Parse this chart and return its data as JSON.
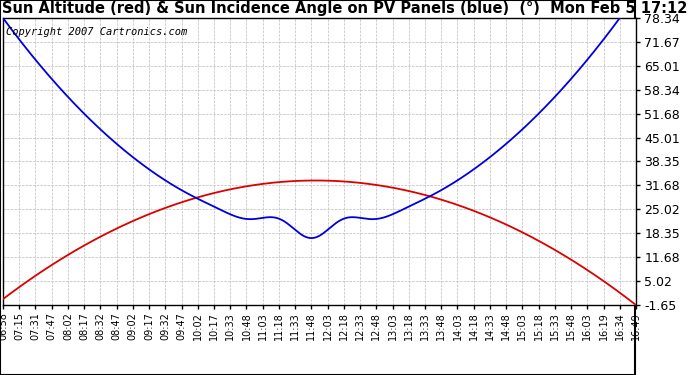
{
  "title": "Sun Altitude (red) & Sun Incidence Angle on PV Panels (blue)  (°)  Mon Feb 5 17:12",
  "copyright": "Copyright 2007 Cartronics.com",
  "yticks": [
    78.34,
    71.67,
    65.01,
    58.34,
    51.68,
    45.01,
    38.35,
    31.68,
    25.02,
    18.35,
    11.68,
    5.02,
    -1.65
  ],
  "ymin": -1.65,
  "ymax": 78.34,
  "xtick_labels": [
    "06:58",
    "07:15",
    "07:31",
    "07:47",
    "08:02",
    "08:17",
    "08:32",
    "08:47",
    "09:02",
    "09:17",
    "09:32",
    "09:47",
    "10:02",
    "10:17",
    "10:33",
    "10:48",
    "11:03",
    "11:18",
    "11:33",
    "11:48",
    "12:03",
    "12:18",
    "12:33",
    "12:48",
    "13:03",
    "13:18",
    "13:33",
    "13:48",
    "14:03",
    "14:18",
    "14:33",
    "14:48",
    "15:03",
    "15:18",
    "15:33",
    "15:48",
    "16:03",
    "16:19",
    "16:34",
    "16:49"
  ],
  "bg_color": "#ffffff",
  "plot_bg_color": "#ffffff",
  "grid_color": "#bbbbbb",
  "blue_color": "#0000dd",
  "red_color": "#dd0000",
  "title_color": "#000000",
  "title_fontsize": 10.5,
  "ytick_fontsize": 9,
  "xtick_fontsize": 7,
  "copyright_fontsize": 7.5,
  "border_color": "#000000"
}
